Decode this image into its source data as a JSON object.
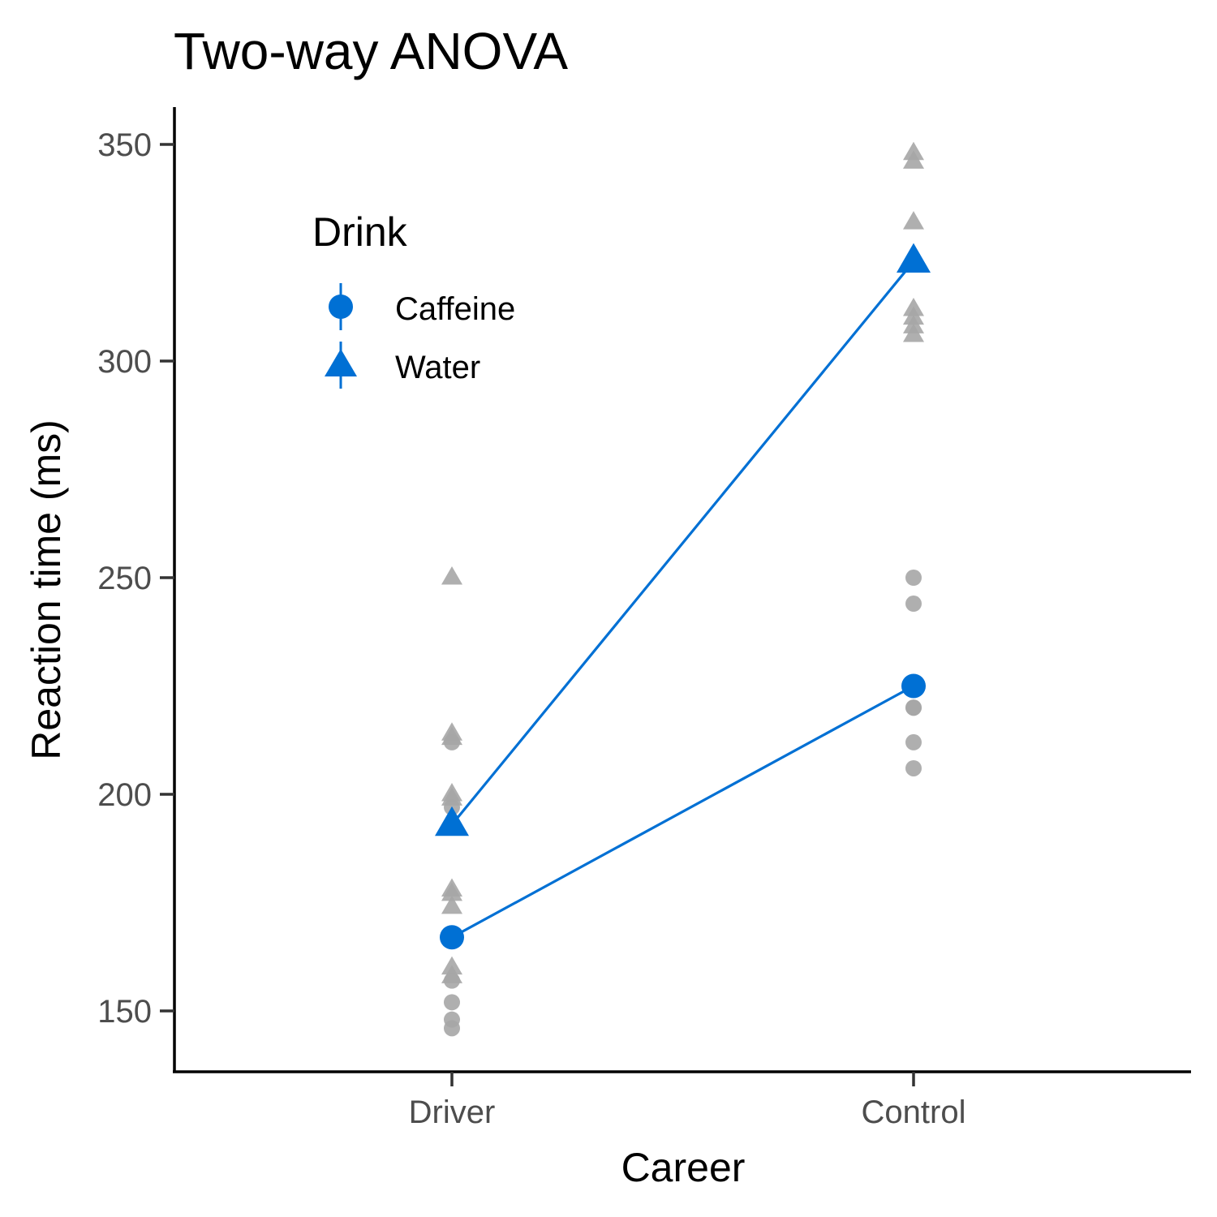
{
  "chart_data": {
    "type": "scatter",
    "title": "Two-way ANOVA",
    "xlabel": "Career",
    "ylabel": "Reaction time (ms)",
    "categories": [
      "Driver",
      "Control"
    ],
    "ylim": [
      136,
      358
    ],
    "yticks": [
      150,
      200,
      250,
      300,
      350
    ],
    "grid": false,
    "legend": {
      "title": "Drink",
      "position": "top-left",
      "entries": [
        {
          "name": "Caffeine",
          "shape": "circle"
        },
        {
          "name": "Water",
          "shape": "triangle"
        }
      ]
    },
    "colors": {
      "series": "#0070d4",
      "raw_points": "#a6a6a6",
      "axis": "#000000",
      "tick_text": "#4d4d4d"
    },
    "series": [
      {
        "name": "Caffeine",
        "shape": "circle",
        "means": [
          167,
          225
        ],
        "raw": [
          [
            212,
            197,
            157,
            152,
            148,
            146
          ],
          [
            250,
            244,
            220,
            220,
            212,
            206
          ]
        ]
      },
      {
        "name": "Water",
        "shape": "triangle",
        "means": [
          193,
          323
        ],
        "raw": [
          [
            250,
            214,
            213,
            200,
            199,
            178,
            177,
            174,
            160,
            158
          ],
          [
            348,
            346,
            332,
            312,
            310,
            308,
            306
          ]
        ]
      }
    ]
  }
}
